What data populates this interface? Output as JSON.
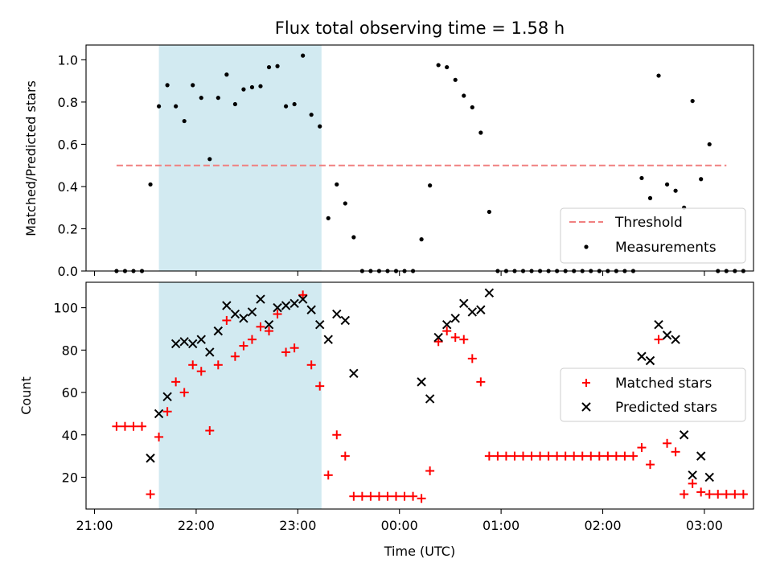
{
  "chart_data": [
    {
      "type": "scatter",
      "title": "Flux total observing time = 1.58 h",
      "xlabel": "",
      "ylabel": "Matched/Predicted stars",
      "xlim": [
        "20:55",
        "03:29"
      ],
      "ylim": [
        0,
        1.07
      ],
      "yticks": [
        0.0,
        0.2,
        0.4,
        0.6,
        0.8,
        1.0
      ],
      "ytick_labels": [
        "0.0",
        "0.2",
        "0.4",
        "0.6",
        "0.8",
        "1.0"
      ],
      "xtick_labels_visible": false,
      "shaded_span": [
        "21:38",
        "23:14"
      ],
      "shaded_color": "#add8e6",
      "legend_position": "lower-right",
      "series": [
        {
          "name": "Threshold",
          "style": "dashed-line",
          "color": "#f08080",
          "points": [
            [
              "21:13",
              0.5
            ],
            [
              "03:13",
              0.5
            ]
          ]
        },
        {
          "name": "Measurements",
          "style": "dot",
          "color": "#000000",
          "points": [
            [
              "21:13",
              0.0
            ],
            [
              "21:18",
              0.0
            ],
            [
              "21:23",
              0.0
            ],
            [
              "21:28",
              0.0
            ],
            [
              "21:33",
              0.41
            ],
            [
              "21:38",
              0.78
            ],
            [
              "21:43",
              0.88
            ],
            [
              "21:48",
              0.78
            ],
            [
              "21:53",
              0.71
            ],
            [
              "21:58",
              0.88
            ],
            [
              "22:03",
              0.82
            ],
            [
              "22:08",
              0.53
            ],
            [
              "22:13",
              0.82
            ],
            [
              "22:18",
              0.93
            ],
            [
              "22:23",
              0.79
            ],
            [
              "22:28",
              0.86
            ],
            [
              "22:33",
              0.87
            ],
            [
              "22:38",
              0.875
            ],
            [
              "22:43",
              0.965
            ],
            [
              "22:48",
              0.97
            ],
            [
              "22:53",
              0.78
            ],
            [
              "22:58",
              0.79
            ],
            [
              "23:03",
              1.02
            ],
            [
              "23:08",
              0.74
            ],
            [
              "23:13",
              0.685
            ],
            [
              "23:18",
              0.25
            ],
            [
              "23:23",
              0.41
            ],
            [
              "23:28",
              0.32
            ],
            [
              "23:33",
              0.16
            ],
            [
              "23:38",
              0.0
            ],
            [
              "23:43",
              0.0
            ],
            [
              "23:48",
              0.0
            ],
            [
              "23:53",
              0.0
            ],
            [
              "23:58",
              0.0
            ],
            [
              "00:03",
              0.0
            ],
            [
              "00:08",
              0.0
            ],
            [
              "00:13",
              0.15
            ],
            [
              "00:18",
              0.405
            ],
            [
              "00:23",
              0.975
            ],
            [
              "00:28",
              0.965
            ],
            [
              "00:33",
              0.905
            ],
            [
              "00:38",
              0.83
            ],
            [
              "00:43",
              0.775
            ],
            [
              "00:48",
              0.655
            ],
            [
              "00:53",
              0.28
            ],
            [
              "00:58",
              0.0
            ],
            [
              "01:03",
              0.0
            ],
            [
              "01:08",
              0.0
            ],
            [
              "01:13",
              0.0
            ],
            [
              "01:18",
              0.0
            ],
            [
              "01:23",
              0.0
            ],
            [
              "01:28",
              0.0
            ],
            [
              "01:33",
              0.0
            ],
            [
              "01:38",
              0.0
            ],
            [
              "01:43",
              0.0
            ],
            [
              "01:48",
              0.0
            ],
            [
              "01:53",
              0.0
            ],
            [
              "01:58",
              0.0
            ],
            [
              "02:03",
              0.0
            ],
            [
              "02:08",
              0.0
            ],
            [
              "02:13",
              0.0
            ],
            [
              "02:18",
              0.0
            ],
            [
              "02:23",
              0.44
            ],
            [
              "02:28",
              0.345
            ],
            [
              "02:33",
              0.925
            ],
            [
              "02:38",
              0.41
            ],
            [
              "02:43",
              0.38
            ],
            [
              "02:48",
              0.3
            ],
            [
              "02:53",
              0.805
            ],
            [
              "02:58",
              0.435
            ],
            [
              "03:03",
              0.6
            ],
            [
              "03:08",
              0.0
            ],
            [
              "03:13",
              0.0
            ],
            [
              "03:18",
              0.0
            ],
            [
              "03:23",
              0.0
            ]
          ]
        }
      ]
    },
    {
      "type": "scatter",
      "xlabel": "Time (UTC)",
      "ylabel": "Count",
      "xlim": [
        "20:55",
        "03:29"
      ],
      "ylim": [
        5,
        112
      ],
      "yticks": [
        20,
        40,
        60,
        80,
        100
      ],
      "ytick_labels": [
        "20",
        "40",
        "60",
        "80",
        "100"
      ],
      "xticks": [
        "21:00",
        "22:00",
        "23:00",
        "00:00",
        "01:00",
        "02:00",
        "03:00"
      ],
      "xtick_labels": [
        "21:00",
        "22:00",
        "23:00",
        "00:00",
        "01:00",
        "02:00",
        "03:00"
      ],
      "shaded_span": [
        "21:38",
        "23:14"
      ],
      "shaded_color": "#add8e6",
      "legend_position": "center-right",
      "series": [
        {
          "name": "Matched stars",
          "style": "plus",
          "color": "#ff0000",
          "points": [
            [
              "21:13",
              44
            ],
            [
              "21:18",
              44
            ],
            [
              "21:23",
              44
            ],
            [
              "21:28",
              44
            ],
            [
              "21:33",
              12
            ],
            [
              "21:38",
              39
            ],
            [
              "21:43",
              51
            ],
            [
              "21:48",
              65
            ],
            [
              "21:53",
              60
            ],
            [
              "21:58",
              73
            ],
            [
              "22:03",
              70
            ],
            [
              "22:08",
              42
            ],
            [
              "22:13",
              73
            ],
            [
              "22:18",
              94
            ],
            [
              "22:23",
              77
            ],
            [
              "22:28",
              82
            ],
            [
              "22:33",
              85
            ],
            [
              "22:38",
              91
            ],
            [
              "22:43",
              89
            ],
            [
              "22:48",
              97
            ],
            [
              "22:53",
              79
            ],
            [
              "22:58",
              81
            ],
            [
              "23:03",
              106
            ],
            [
              "23:08",
              73
            ],
            [
              "23:13",
              63
            ],
            [
              "23:18",
              21
            ],
            [
              "23:23",
              40
            ],
            [
              "23:28",
              30
            ],
            [
              "23:33",
              11
            ],
            [
              "23:38",
              11
            ],
            [
              "23:43",
              11
            ],
            [
              "23:48",
              11
            ],
            [
              "23:53",
              11
            ],
            [
              "23:58",
              11
            ],
            [
              "00:03",
              11
            ],
            [
              "00:08",
              11
            ],
            [
              "00:13",
              10
            ],
            [
              "00:18",
              23
            ],
            [
              "00:23",
              84
            ],
            [
              "00:28",
              89
            ],
            [
              "00:33",
              86
            ],
            [
              "00:38",
              85
            ],
            [
              "00:43",
              76
            ],
            [
              "00:48",
              65
            ],
            [
              "00:53",
              30
            ],
            [
              "00:58",
              30
            ],
            [
              "01:03",
              30
            ],
            [
              "01:08",
              30
            ],
            [
              "01:13",
              30
            ],
            [
              "01:18",
              30
            ],
            [
              "01:23",
              30
            ],
            [
              "01:28",
              30
            ],
            [
              "01:33",
              30
            ],
            [
              "01:38",
              30
            ],
            [
              "01:43",
              30
            ],
            [
              "01:48",
              30
            ],
            [
              "01:53",
              30
            ],
            [
              "01:58",
              30
            ],
            [
              "02:03",
              30
            ],
            [
              "02:08",
              30
            ],
            [
              "02:13",
              30
            ],
            [
              "02:18",
              30
            ],
            [
              "02:23",
              34
            ],
            [
              "02:28",
              26
            ],
            [
              "02:33",
              85
            ],
            [
              "02:38",
              36
            ],
            [
              "02:43",
              32
            ],
            [
              "02:48",
              12
            ],
            [
              "02:53",
              17
            ],
            [
              "02:58",
              13
            ],
            [
              "03:03",
              12
            ],
            [
              "03:08",
              12
            ],
            [
              "03:13",
              12
            ],
            [
              "03:18",
              12
            ],
            [
              "03:23",
              12
            ]
          ]
        },
        {
          "name": "Predicted stars",
          "style": "x",
          "color": "#000000",
          "points": [
            [
              "21:33",
              29
            ],
            [
              "21:38",
              50
            ],
            [
              "21:43",
              58
            ],
            [
              "21:48",
              83
            ],
            [
              "21:53",
              84
            ],
            [
              "21:58",
              83
            ],
            [
              "22:03",
              85
            ],
            [
              "22:08",
              79
            ],
            [
              "22:13",
              89
            ],
            [
              "22:18",
              101
            ],
            [
              "22:23",
              97
            ],
            [
              "22:28",
              95
            ],
            [
              "22:33",
              98
            ],
            [
              "22:38",
              104
            ],
            [
              "22:43",
              92
            ],
            [
              "22:48",
              100
            ],
            [
              "22:53",
              101
            ],
            [
              "22:58",
              102
            ],
            [
              "23:03",
              104
            ],
            [
              "23:08",
              99
            ],
            [
              "23:13",
              92
            ],
            [
              "23:18",
              85
            ],
            [
              "23:23",
              97
            ],
            [
              "23:28",
              94
            ],
            [
              "23:33",
              69
            ],
            [
              "00:13",
              65
            ],
            [
              "00:18",
              57
            ],
            [
              "00:23",
              86
            ],
            [
              "00:28",
              92
            ],
            [
              "00:33",
              95
            ],
            [
              "00:38",
              102
            ],
            [
              "00:43",
              98
            ],
            [
              "00:48",
              99
            ],
            [
              "00:53",
              107
            ],
            [
              "02:23",
              77
            ],
            [
              "02:28",
              75
            ],
            [
              "02:33",
              92
            ],
            [
              "02:38",
              87
            ],
            [
              "02:43",
              85
            ],
            [
              "02:48",
              40
            ],
            [
              "02:53",
              21
            ],
            [
              "02:58",
              30
            ],
            [
              "03:03",
              20
            ]
          ]
        }
      ]
    }
  ]
}
